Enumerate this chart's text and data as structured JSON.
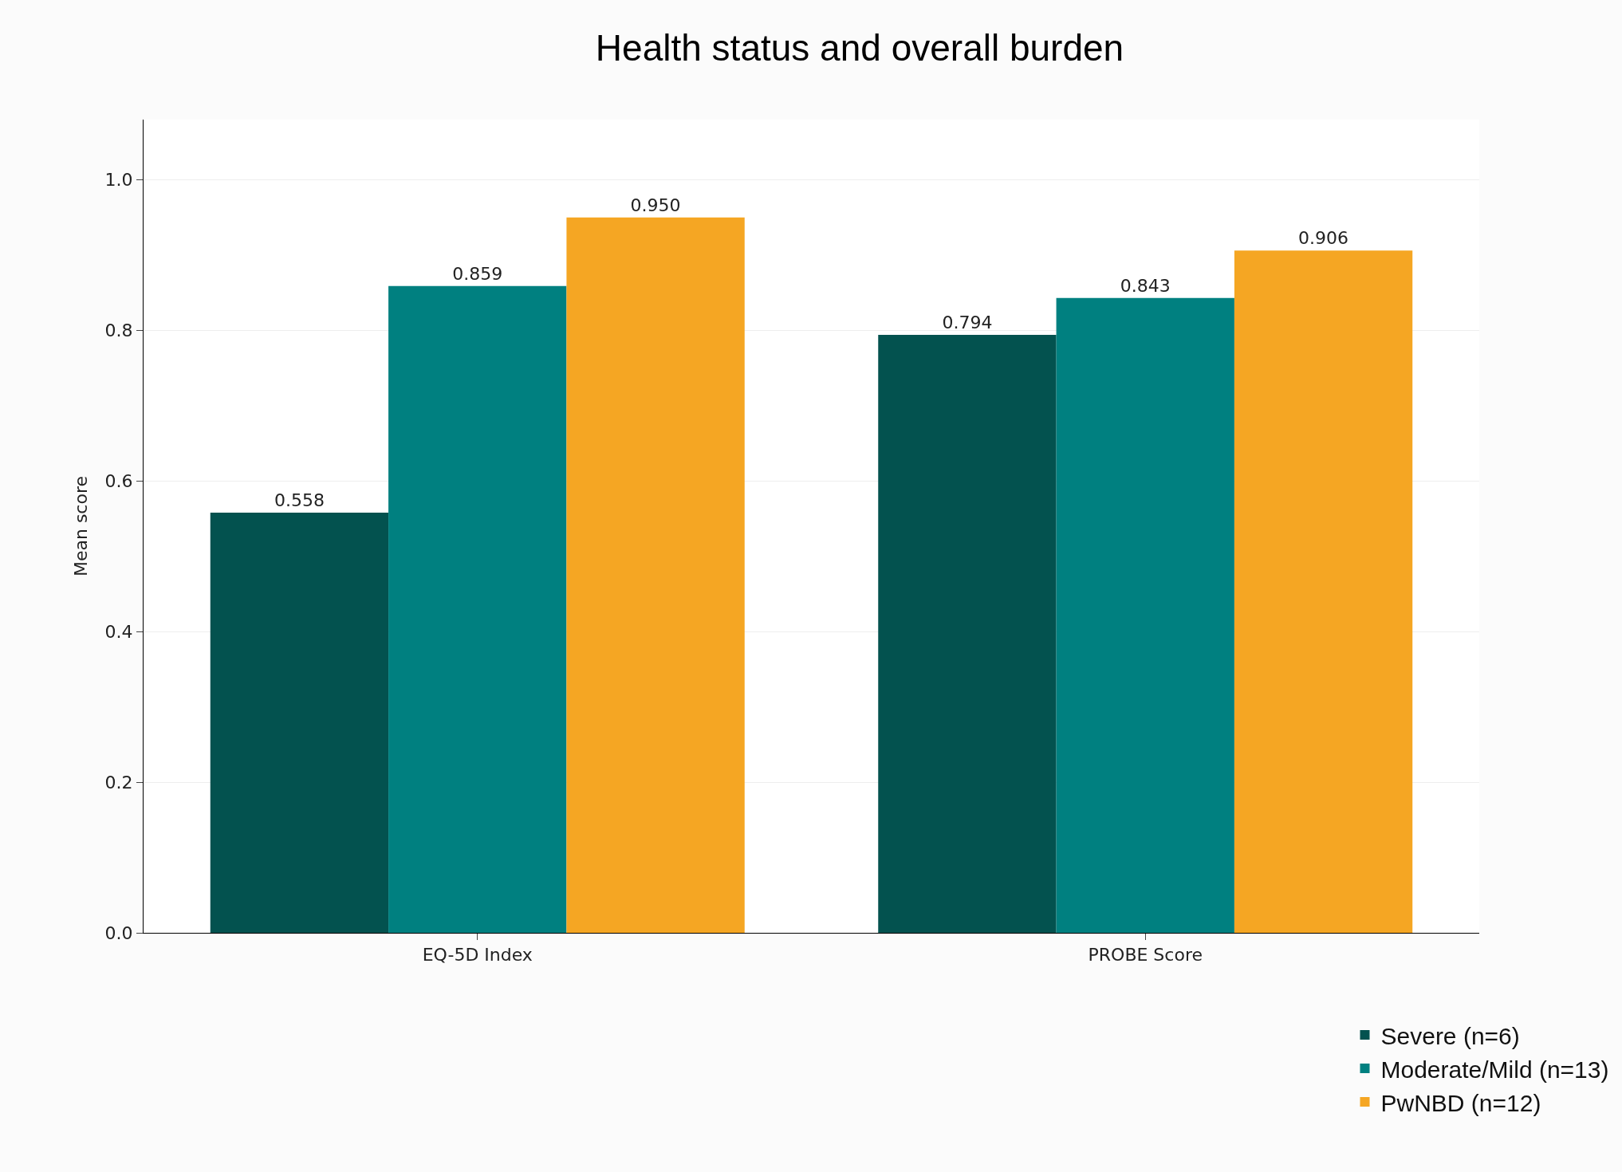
{
  "chart_data": {
    "type": "bar",
    "title": "Health status and overall burden",
    "ylabel": "Mean score",
    "categories": [
      "EQ-5D Index",
      "PROBE Score"
    ],
    "series": [
      {
        "name": "Severe (n=6)",
        "color": "#03524f",
        "values": [
          0.558,
          0.794
        ],
        "value_labels": [
          "0.558",
          "0.794"
        ]
      },
      {
        "name": "Moderate/Mild (n=13)",
        "color": "#008080",
        "values": [
          0.859,
          0.843
        ],
        "value_labels": [
          "0.859",
          "0.843"
        ]
      },
      {
        "name": "PwNBD (n=12)",
        "color": "#f5a623",
        "values": [
          0.95,
          0.906
        ],
        "value_labels": [
          "0.950",
          "0.906"
        ]
      }
    ],
    "ylim": [
      0,
      1.08
    ],
    "yticks": [
      {
        "value": 0,
        "label": "0.0"
      },
      0.2,
      0.4,
      0.6,
      0.8,
      {
        "value": 1,
        "label": "1.0"
      }
    ],
    "grid": "y",
    "legend": "bottom right"
  }
}
